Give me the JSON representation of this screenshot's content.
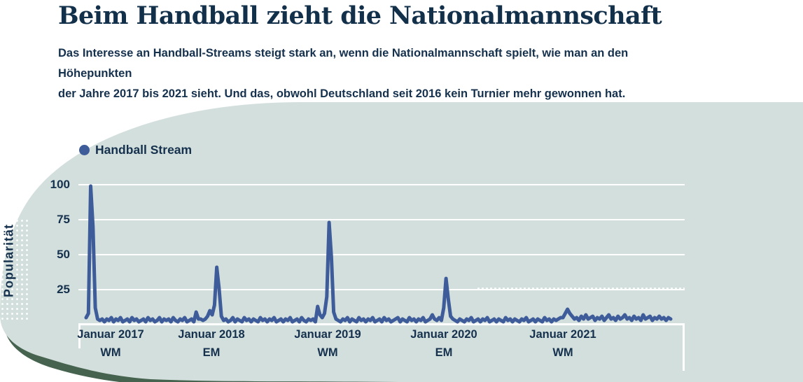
{
  "header": {
    "title": "Beim Handball zieht die Nationalmannschaft",
    "subtitle_line1": "Das Interesse an Handball-Streams steigt stark an, wenn die Nationalmannschaft spielt, wie man an den Höhepunkten",
    "subtitle_line2": "der Jahre 2017 bis 2021 sieht. Und das, obwohl Deutschland seit 2016 kein Turnier mehr gewonnen hat."
  },
  "legend": {
    "label": "Handball Stream"
  },
  "colors": {
    "line_blue": "#3e5c9a",
    "text_navy": "#15314d",
    "card_background": "#d3dfdc",
    "background_green": "#45634e",
    "gridline_white": "#ffffff"
  },
  "chart_data": {
    "type": "line",
    "title": "",
    "series_name": "Handball Stream",
    "ylabel": "Popularität",
    "xlabel": "",
    "ylim": [
      0,
      100
    ],
    "y_ticks": [
      100,
      75,
      50,
      25
    ],
    "x_ticks": [
      {
        "label": "Januar 2017",
        "event": "WM"
      },
      {
        "label": "Januar 2018",
        "event": "EM"
      },
      {
        "label": "Januar 2019",
        "event": "WM"
      },
      {
        "label": "Januar 2020",
        "event": "EM"
      },
      {
        "label": "Januar 2021",
        "event": "WM"
      }
    ],
    "x_interval": "weekly",
    "x_start": "Januar 2017",
    "x_end": "Dezember 2021",
    "grid": "horizontal-white",
    "legend_position": "top-left",
    "peaks": [
      {
        "x": "Januar 2017",
        "event": "WM",
        "value": 99
      },
      {
        "x": "Januar 2018",
        "event": "EM",
        "value": 41
      },
      {
        "x": "Januar 2019",
        "event": "WM",
        "value": 73
      },
      {
        "x": "Januar 2020",
        "event": "EM",
        "value": 33
      },
      {
        "x": "Januar 2021",
        "event": "WM",
        "value": 11
      }
    ],
    "values": [
      5,
      8,
      99,
      70,
      12,
      4,
      3,
      4,
      2,
      4,
      3,
      5,
      2,
      4,
      3,
      5,
      2,
      3,
      4,
      2,
      5,
      3,
      4,
      2,
      3,
      4,
      2,
      5,
      3,
      4,
      2,
      3,
      5,
      2,
      4,
      3,
      4,
      2,
      5,
      3,
      2,
      4,
      3,
      5,
      2,
      3,
      4,
      2,
      9,
      4,
      4,
      3,
      4,
      6,
      10,
      7,
      14,
      41,
      26,
      6,
      3,
      4,
      2,
      3,
      5,
      2,
      4,
      3,
      2,
      5,
      3,
      4,
      2,
      4,
      3,
      2,
      5,
      3,
      4,
      2,
      4,
      3,
      5,
      2,
      3,
      4,
      2,
      4,
      3,
      5,
      2,
      3,
      4,
      2,
      5,
      3,
      2,
      4,
      3,
      4,
      2,
      13,
      7,
      5,
      8,
      20,
      73,
      48,
      9,
      4,
      3,
      2,
      4,
      3,
      5,
      2,
      4,
      3,
      2,
      5,
      3,
      4,
      2,
      4,
      3,
      5,
      2,
      3,
      4,
      2,
      5,
      3,
      4,
      2,
      3,
      4,
      5,
      2,
      4,
      3,
      2,
      5,
      3,
      4,
      2,
      4,
      3,
      5,
      2,
      3,
      4,
      7,
      4,
      3,
      5,
      3,
      12,
      33,
      18,
      6,
      4,
      3,
      2,
      4,
      3,
      2,
      4,
      3,
      5,
      2,
      3,
      4,
      2,
      4,
      3,
      5,
      2,
      3,
      4,
      2,
      4,
      3,
      2,
      5,
      3,
      4,
      2,
      4,
      3,
      2,
      4,
      3,
      5,
      2,
      3,
      4,
      2,
      4,
      3,
      2,
      5,
      3,
      4,
      2,
      4,
      3,
      4,
      5,
      5,
      8,
      11,
      8,
      6,
      4,
      5,
      3,
      6,
      4,
      7,
      4,
      5,
      6,
      3,
      5,
      4,
      6,
      3,
      5,
      7,
      4,
      5,
      3,
      6,
      4,
      5,
      7,
      4,
      5,
      3,
      6,
      4,
      5,
      3,
      7,
      4,
      5,
      6,
      3,
      5,
      4,
      6,
      4,
      5,
      3,
      5,
      4
    ]
  }
}
